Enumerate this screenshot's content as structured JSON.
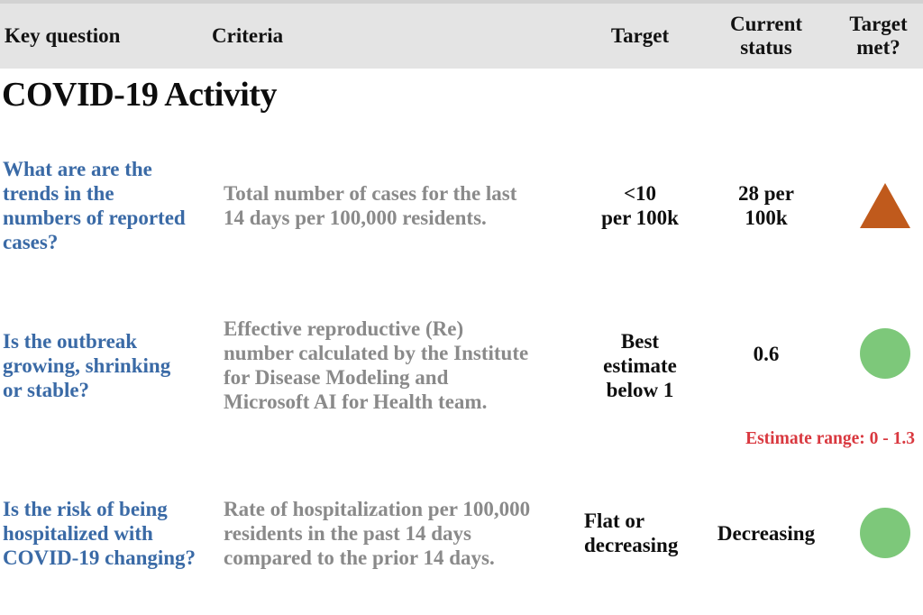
{
  "colors": {
    "header-bg": "#e4e4e4",
    "header-top-line": "#d2d2d2",
    "question-blue": "#3a6aa6",
    "criteria-gray": "#8a8a8a",
    "status-not-met": "#c05a1c",
    "status-met": "#7dc87a",
    "note-red": "#d9383f"
  },
  "header": {
    "key_question": "Key question",
    "criteria": "Criteria",
    "target": "Target",
    "current_status": "Current\nstatus",
    "target_met": "Target\nmet?"
  },
  "section": {
    "title": "COVID-19 Activity"
  },
  "rows": [
    {
      "question": "What are are the\ntrends in the\nnumbers of reported\ncases?",
      "criteria": "Total number of cases for the last\n14 days per 100,000 residents.",
      "target": "<10\nper 100k",
      "current_status": "28 per\n100k",
      "status_icon": "orange-triangle-up"
    },
    {
      "question": "Is the outbreak\ngrowing, shrinking\nor stable?",
      "criteria": "Effective reproductive (Re)\nnumber calculated by the Institute\nfor Disease Modeling and\nMicrosoft AI for Health team.",
      "target": "Best\nestimate\nbelow 1",
      "current_status": "0.6",
      "status_icon": "green-circle",
      "note": "Estimate range: 0 - 1.3"
    },
    {
      "question": "Is the risk of being\nhospitalized with\nCOVID-19 changing?",
      "criteria": "Rate of hospitalization per 100,000\nresidents in the past 14 days\ncompared to the prior 14 days.",
      "target": "Flat or\ndecreasing",
      "current_status": "Decreasing",
      "status_icon": "green-circle"
    }
  ]
}
